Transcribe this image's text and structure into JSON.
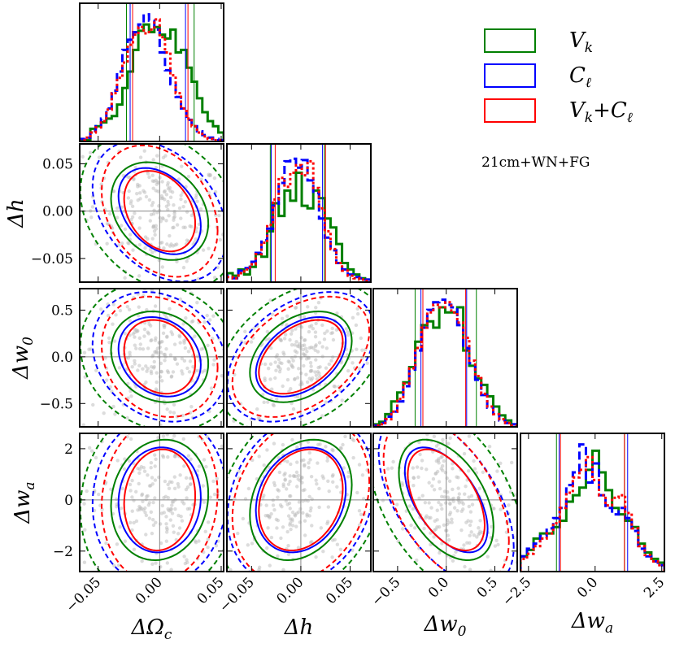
{
  "chart_data": {
    "type": "corner",
    "title": "",
    "annotation": "21cm+WN+FG",
    "parameters": [
      {
        "id": "omc",
        "label": "ΔΩ_c",
        "range": [
          -0.065,
          0.052
        ],
        "ticks": [
          -0.05,
          0.0,
          0.05
        ],
        "tick_labels": [
          "−0.05",
          "0.00",
          "0.05"
        ]
      },
      {
        "id": "h",
        "label": "Δh",
        "range": [
          -0.075,
          0.071
        ],
        "ticks": [
          -0.05,
          0.0,
          0.05
        ],
        "tick_labels": [
          "−0.05",
          "0.00",
          "0.05"
        ]
      },
      {
        "id": "w0",
        "label": "Δw_0",
        "range": [
          -0.75,
          0.73
        ],
        "ticks": [
          -0.5,
          0.0,
          0.5
        ],
        "tick_labels": [
          "−0.5",
          "0.0",
          "0.5"
        ]
      },
      {
        "id": "wa",
        "label": "Δw_a",
        "range": [
          -2.8,
          2.6
        ],
        "ticks": [
          -2.5,
          0.0,
          2.5
        ],
        "tick_labels": [
          "−2.5",
          "0.0",
          "2.5"
        ]
      }
    ],
    "y_tick_labels": {
      "h": [
        "0.05",
        "0.00",
        "−0.05"
      ],
      "w0": [
        "0.5",
        "0.0",
        "−0.5"
      ],
      "wa": [
        "2",
        "0",
        "−2"
      ]
    },
    "y_ticks": {
      "h": [
        0.05,
        0.0,
        -0.05
      ],
      "w0": [
        0.5,
        0.0,
        -0.5
      ],
      "wa": [
        2,
        0,
        -2
      ]
    },
    "series": [
      {
        "name": "V_k",
        "legend": "V",
        "sub": "k",
        "color": "#008000",
        "line": "solid",
        "sigma": {
          "omc": 0.026,
          "h": 0.034,
          "w0": 0.32,
          "wa": 1.55
        },
        "corr": {
          "h|omc": -0.25,
          "w0|omc": -0.15,
          "w0|h": 0.35,
          "wa|omc": 0.1,
          "wa|h": 0.25,
          "wa|w0": -0.45
        },
        "ci68": {
          "omc": [
            -0.027,
            0.028
          ],
          "h": [
            -0.031,
            0.024
          ],
          "w0": [
            -0.32,
            0.31
          ],
          "wa": [
            -1.45,
            1.1
          ]
        },
        "hist": {
          "omc": [
            0.01,
            0.01,
            0.1,
            0.12,
            0.15,
            0.18,
            0.2,
            0.29,
            0.42,
            0.55,
            0.72,
            0.87,
            0.92,
            0.86,
            0.9,
            0.84,
            0.81,
            0.88,
            0.7,
            0.72,
            0.58,
            0.47,
            0.34,
            0.23,
            0.16,
            0.12,
            0.07
          ],
          "h": [
            0.07,
            0.05,
            0.1,
            0.06,
            0.12,
            0.22,
            0.2,
            0.4,
            0.62,
            0.52,
            0.72,
            0.64,
            0.86,
            0.6,
            0.58,
            0.72,
            0.66,
            0.5,
            0.43,
            0.3,
            0.15,
            0.1,
            0.06,
            0.03,
            0.02
          ],
          "w0": [
            0.02,
            0.04,
            0.1,
            0.2,
            0.27,
            0.35,
            0.47,
            0.67,
            0.8,
            0.83,
            0.78,
            0.94,
            0.9,
            0.9,
            0.94,
            0.6,
            0.48,
            0.38,
            0.33,
            0.24,
            0.16,
            0.09,
            0.05,
            0.02
          ],
          "wa": [
            0.12,
            0.17,
            0.26,
            0.3,
            0.3,
            0.35,
            0.4,
            0.55,
            0.6,
            0.66,
            0.8,
            0.95,
            0.78,
            0.64,
            0.5,
            0.45,
            0.4,
            0.35,
            0.22,
            0.15,
            0.1,
            0.07
          ]
        }
      },
      {
        "name": "C_ℓ",
        "legend": "C",
        "sub": "ℓ",
        "color": "#0000ff",
        "line": "dashed",
        "sigma": {
          "omc": 0.022,
          "h": 0.03,
          "w0": 0.28,
          "wa": 1.35
        },
        "corr": {
          "h|omc": -0.35,
          "w0|omc": -0.2,
          "w0|h": 0.4,
          "wa|omc": 0.05,
          "wa|h": 0.2,
          "wa|w0": -0.55
        },
        "ci68": {
          "omc": [
            -0.024,
            0.021
          ],
          "h": [
            -0.03,
            0.022
          ],
          "w0": [
            -0.26,
            0.21
          ],
          "wa": [
            -1.35,
            1.22
          ]
        },
        "hist": {
          "omc": [
            0.02,
            0.03,
            0.08,
            0.12,
            0.18,
            0.26,
            0.4,
            0.55,
            0.72,
            0.8,
            0.86,
            0.92,
            1.0,
            0.95,
            0.88,
            0.7,
            0.56,
            0.45,
            0.35,
            0.26,
            0.17,
            0.12,
            0.08,
            0.05,
            0.03,
            0.02,
            0.01
          ],
          "h": [
            0.05,
            0.03,
            0.09,
            0.11,
            0.16,
            0.23,
            0.33,
            0.42,
            0.6,
            0.78,
            0.95,
            0.97,
            0.9,
            0.96,
            0.8,
            0.7,
            0.5,
            0.35,
            0.25,
            0.15,
            0.1,
            0.06,
            0.04,
            0.03,
            0.02
          ],
          "w0": [
            0.01,
            0.03,
            0.08,
            0.12,
            0.2,
            0.32,
            0.45,
            0.6,
            0.78,
            0.92,
            0.98,
            1.0,
            0.96,
            0.94,
            0.8,
            0.62,
            0.5,
            0.37,
            0.25,
            0.15,
            0.1,
            0.05,
            0.03,
            0.02
          ],
          "wa": [
            0.12,
            0.18,
            0.22,
            0.28,
            0.34,
            0.42,
            0.5,
            0.68,
            0.78,
            1.0,
            0.7,
            0.85,
            0.6,
            0.5,
            0.45,
            0.5,
            0.42,
            0.32,
            0.18,
            0.12,
            0.08,
            0.05
          ]
        }
      },
      {
        "name": "V_k+C_ℓ",
        "legend": "V",
        "sub": "k",
        "legend2": "+C",
        "sub2": "ℓ",
        "color": "#ff0000",
        "line": "dotted",
        "sigma": {
          "omc": 0.019,
          "h": 0.028,
          "w0": 0.26,
          "wa": 1.3
        },
        "corr": {
          "h|omc": -0.3,
          "w0|omc": -0.18,
          "w0|h": 0.42,
          "wa|omc": 0.08,
          "wa|h": 0.22,
          "wa|w0": -0.5
        },
        "ci68": {
          "omc": [
            -0.022,
            0.023
          ],
          "h": [
            -0.026,
            0.025
          ],
          "w0": [
            -0.24,
            0.2
          ],
          "wa": [
            -1.3,
            1.1
          ]
        },
        "hist": {
          "omc": [
            0.01,
            0.03,
            0.07,
            0.11,
            0.16,
            0.25,
            0.38,
            0.5,
            0.62,
            0.76,
            0.84,
            0.9,
            0.85,
            0.88,
            0.96,
            0.82,
            0.7,
            0.52,
            0.38,
            0.26,
            0.18,
            0.12,
            0.07,
            0.04,
            0.02,
            0.01,
            0.01
          ],
          "h": [
            0.04,
            0.03,
            0.07,
            0.1,
            0.14,
            0.22,
            0.31,
            0.45,
            0.65,
            0.82,
            0.75,
            0.86,
            0.92,
            0.84,
            0.95,
            0.74,
            0.58,
            0.4,
            0.26,
            0.15,
            0.09,
            0.05,
            0.03,
            0.02,
            0.01
          ],
          "w0": [
            0.01,
            0.02,
            0.06,
            0.12,
            0.22,
            0.34,
            0.46,
            0.62,
            0.78,
            0.9,
            0.96,
            0.94,
            0.98,
            0.9,
            0.82,
            0.7,
            0.52,
            0.4,
            0.26,
            0.16,
            0.1,
            0.06,
            0.03,
            0.01
          ],
          "wa": [
            0.1,
            0.14,
            0.2,
            0.26,
            0.3,
            0.38,
            0.5,
            0.62,
            0.74,
            0.8,
            0.9,
            0.72,
            0.6,
            0.52,
            0.58,
            0.6,
            0.46,
            0.34,
            0.2,
            0.13,
            0.08,
            0.05
          ]
        }
      }
    ]
  }
}
